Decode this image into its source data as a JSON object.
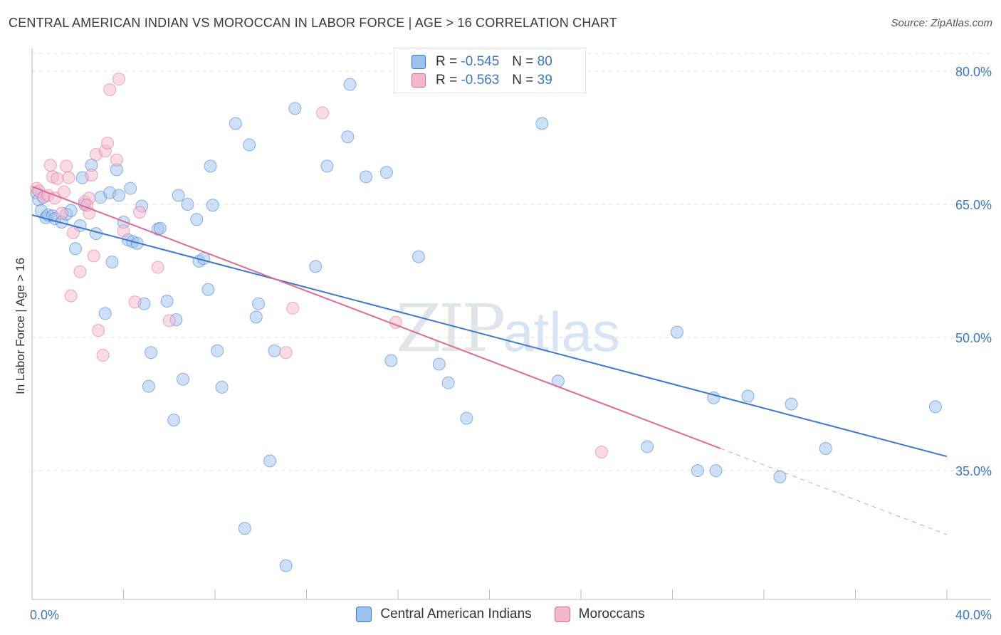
{
  "title": "CENTRAL AMERICAN INDIAN VS MOROCCAN IN LABOR FORCE | AGE > 16 CORRELATION CHART",
  "source": "Source: ZipAtlas.com",
  "watermark": {
    "zip": "ZIP",
    "atlas": "atlas"
  },
  "legend": {
    "rows": [
      {
        "r_label": "R = ",
        "r_value": "-0.545",
        "n_label": "N = ",
        "n_value": "80",
        "color": "#9ec2ee"
      },
      {
        "r_label": "R = ",
        "r_value": "-0.563",
        "n_label": "N = ",
        "n_value": "39",
        "color": "#f4b8cb"
      }
    ]
  },
  "bottom_legend": [
    {
      "label": "Central American Indians",
      "color": "#9ec2ee"
    },
    {
      "label": "Moroccans",
      "color": "#f4b8cb"
    }
  ],
  "chart_data": {
    "type": "scatter",
    "title": "CENTRAL AMERICAN INDIAN VS MOROCCAN IN LABOR FORCE | AGE > 16 CORRELATION CHART",
    "xlabel": "",
    "ylabel": "In Labor Force | Age > 16",
    "xlim": [
      0,
      40
    ],
    "ylim": [
      20.5,
      82
    ],
    "x_tick_labels": [
      "0.0%",
      "40.0%"
    ],
    "y_ticks": [
      35,
      50,
      65,
      80
    ],
    "y_tick_labels": [
      "35.0%",
      "50.0%",
      "65.0%",
      "80.0%"
    ],
    "grid": true,
    "legend_position": "top-center",
    "series": [
      {
        "name": "Central American Indians",
        "color": "#3b78cf",
        "fill": "#9ec2ee",
        "trend": {
          "x": [
            0,
            40
          ],
          "y": [
            63.8,
            36.6
          ]
        },
        "points": [
          [
            0.2,
            66.3
          ],
          [
            0.3,
            65.5
          ],
          [
            0.4,
            64.3
          ],
          [
            0.5,
            65.8
          ],
          [
            0.6,
            63.5
          ],
          [
            0.7,
            63.8
          ],
          [
            0.9,
            63.7
          ],
          [
            1.0,
            63.4
          ],
          [
            1.3,
            63.0
          ],
          [
            1.5,
            63.9
          ],
          [
            1.7,
            64.3
          ],
          [
            1.9,
            60.0
          ],
          [
            2.1,
            62.6
          ],
          [
            2.2,
            68.0
          ],
          [
            2.3,
            65.0
          ],
          [
            2.6,
            69.4
          ],
          [
            2.8,
            61.7
          ],
          [
            3.0,
            65.8
          ],
          [
            3.2,
            52.7
          ],
          [
            3.4,
            66.3
          ],
          [
            3.5,
            58.5
          ],
          [
            3.7,
            68.9
          ],
          [
            3.8,
            66.0
          ],
          [
            4.0,
            63.0
          ],
          [
            4.2,
            61.0
          ],
          [
            4.3,
            66.8
          ],
          [
            4.4,
            60.8
          ],
          [
            4.6,
            60.6
          ],
          [
            4.8,
            64.8
          ],
          [
            4.9,
            53.8
          ],
          [
            5.2,
            48.3
          ],
          [
            5.1,
            44.5
          ],
          [
            5.5,
            62.2
          ],
          [
            5.6,
            62.3
          ],
          [
            5.9,
            54.1
          ],
          [
            6.2,
            40.7
          ],
          [
            6.3,
            52.0
          ],
          [
            6.4,
            66.0
          ],
          [
            6.6,
            45.3
          ],
          [
            6.8,
            65.0
          ],
          [
            7.2,
            63.3
          ],
          [
            7.3,
            58.6
          ],
          [
            7.5,
            58.9
          ],
          [
            7.7,
            55.4
          ],
          [
            7.8,
            69.3
          ],
          [
            7.9,
            64.9
          ],
          [
            8.1,
            48.5
          ],
          [
            8.3,
            44.4
          ],
          [
            8.9,
            74.1
          ],
          [
            9.3,
            28.5
          ],
          [
            9.5,
            71.7
          ],
          [
            9.8,
            52.3
          ],
          [
            9.9,
            53.8
          ],
          [
            10.4,
            36.1
          ],
          [
            10.6,
            48.5
          ],
          [
            11.1,
            24.3
          ],
          [
            11.5,
            75.8
          ],
          [
            12.4,
            58.0
          ],
          [
            12.9,
            69.3
          ],
          [
            13.8,
            72.6
          ],
          [
            13.9,
            78.5
          ],
          [
            14.6,
            68.1
          ],
          [
            15.5,
            68.6
          ],
          [
            15.7,
            47.4
          ],
          [
            16.9,
            59.1
          ],
          [
            17.8,
            47.0
          ],
          [
            18.2,
            44.9
          ],
          [
            19.0,
            40.9
          ],
          [
            22.3,
            74.1
          ],
          [
            23.0,
            45.1
          ],
          [
            26.9,
            37.7
          ],
          [
            28.2,
            50.6
          ],
          [
            29.1,
            35.0
          ],
          [
            29.8,
            43.2
          ],
          [
            29.9,
            35.0
          ],
          [
            31.3,
            43.4
          ],
          [
            32.7,
            34.3
          ],
          [
            33.2,
            42.5
          ],
          [
            34.7,
            37.5
          ],
          [
            39.5,
            42.2
          ]
        ]
      },
      {
        "name": "Moroccans",
        "color": "#e06a96",
        "fill": "#f4b8cb",
        "trend": {
          "x": [
            0,
            30.1
          ],
          "y": [
            67.0,
            37.5
          ]
        },
        "trend_dashed": {
          "x": [
            30.1,
            40
          ],
          "y": [
            37.5,
            27.8
          ]
        },
        "points": [
          [
            0.2,
            66.8
          ],
          [
            0.3,
            66.5
          ],
          [
            0.5,
            65.8
          ],
          [
            0.7,
            66.0
          ],
          [
            0.8,
            69.4
          ],
          [
            0.9,
            68.1
          ],
          [
            1.0,
            65.7
          ],
          [
            1.1,
            67.9
          ],
          [
            1.3,
            64.0
          ],
          [
            1.4,
            66.4
          ],
          [
            1.5,
            69.3
          ],
          [
            1.6,
            68.0
          ],
          [
            1.7,
            54.7
          ],
          [
            1.8,
            61.8
          ],
          [
            2.1,
            57.4
          ],
          [
            2.3,
            65.3
          ],
          [
            2.5,
            64.0
          ],
          [
            2.5,
            65.7
          ],
          [
            2.6,
            68.3
          ],
          [
            2.7,
            59.2
          ],
          [
            2.8,
            70.6
          ],
          [
            2.9,
            50.8
          ],
          [
            3.1,
            48.0
          ],
          [
            3.2,
            71.0
          ],
          [
            3.3,
            71.9
          ],
          [
            3.4,
            77.9
          ],
          [
            3.8,
            79.1
          ],
          [
            3.7,
            70.0
          ],
          [
            4.0,
            62.0
          ],
          [
            4.5,
            54.0
          ],
          [
            4.7,
            64.1
          ],
          [
            5.5,
            57.9
          ],
          [
            6.0,
            51.9
          ],
          [
            11.1,
            48.3
          ],
          [
            11.4,
            53.3
          ],
          [
            12.7,
            75.3
          ],
          [
            15.9,
            51.7
          ],
          [
            24.9,
            37.1
          ],
          [
            2.4,
            64.9
          ]
        ]
      }
    ]
  }
}
